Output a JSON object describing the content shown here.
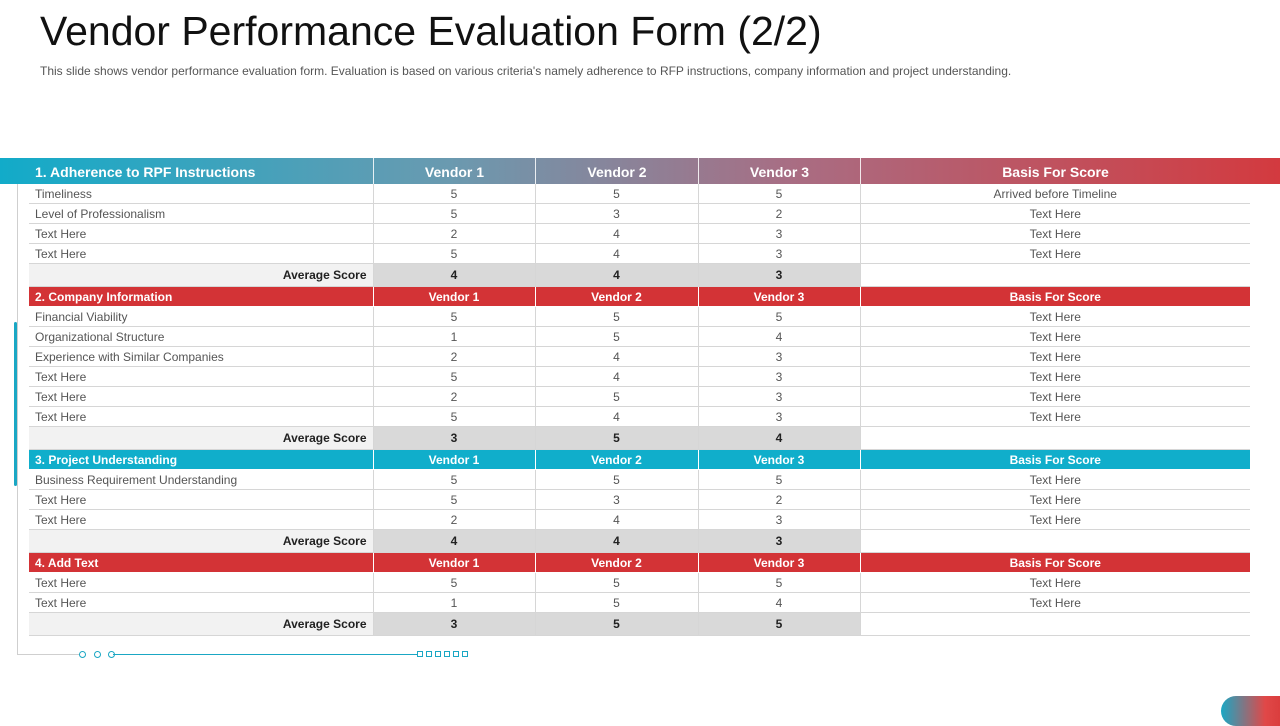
{
  "slide": {
    "title": "Vendor Performance Evaluation Form (2/2)",
    "subtitle": "This slide shows vendor performance  evaluation  form.  Evaluation  is based on various  criteria's namely adherence  to RFP instructions,  company information  and project understanding."
  },
  "banner": {
    "section_title": "1. Adherence to RPF Instructions",
    "vendor1": "Vendor 1",
    "vendor2": "Vendor 2",
    "vendor3": "Vendor 3",
    "basis": "Basis For Score"
  },
  "sections": [
    {
      "header": null,
      "rows": [
        {
          "label": "Timeliness",
          "v1": "5",
          "v2": "5",
          "v3": "5",
          "basis": "Arrived before Timeline"
        },
        {
          "label": "Level of Professionalism",
          "v1": "5",
          "v2": "3",
          "v3": "2",
          "basis": "Text Here"
        },
        {
          "label": "Text Here",
          "v1": "2",
          "v2": "4",
          "v3": "3",
          "basis": "Text Here"
        },
        {
          "label": "Text Here",
          "v1": "5",
          "v2": "4",
          "v3": "3",
          "basis": "Text Here"
        }
      ],
      "average": {
        "label": "Average Score",
        "v1": "4",
        "v2": "4",
        "v3": "3"
      }
    },
    {
      "header": {
        "title": "2. Company Information",
        "vendor1": "Vendor 1",
        "vendor2": "Vendor 2",
        "vendor3": "Vendor 3",
        "basis": "Basis For Score",
        "color": "#d33336"
      },
      "rows": [
        {
          "label": "Financial Viability",
          "v1": "5",
          "v2": "5",
          "v3": "5",
          "basis": "Text Here"
        },
        {
          "label": "Organizational Structure",
          "v1": "1",
          "v2": "5",
          "v3": "4",
          "basis": "Text Here"
        },
        {
          "label": "Experience with Similar Companies",
          "v1": "2",
          "v2": "4",
          "v3": "3",
          "basis": "Text Here"
        },
        {
          "label": "Text Here",
          "v1": "5",
          "v2": "4",
          "v3": "3",
          "basis": "Text Here"
        },
        {
          "label": "Text Here",
          "v1": "2",
          "v2": "5",
          "v3": "3",
          "basis": "Text Here"
        },
        {
          "label": "Text Here",
          "v1": "5",
          "v2": "4",
          "v3": "3",
          "basis": "Text Here"
        }
      ],
      "average": {
        "label": "Average Score",
        "v1": "3",
        "v2": "5",
        "v3": "4"
      }
    },
    {
      "header": {
        "title": "3. Project Understanding",
        "vendor1": "Vendor 1",
        "vendor2": "Vendor 2",
        "vendor3": "Vendor 3",
        "basis": "Basis For Score",
        "color": "#10aecb"
      },
      "rows": [
        {
          "label": "Business Requirement Understanding",
          "v1": "5",
          "v2": "5",
          "v3": "5",
          "basis": "Text Here"
        },
        {
          "label": "Text Here",
          "v1": "5",
          "v2": "3",
          "v3": "2",
          "basis": "Text Here"
        },
        {
          "label": "Text Here",
          "v1": "2",
          "v2": "4",
          "v3": "3",
          "basis": "Text Here"
        }
      ],
      "average": {
        "label": "Average Score",
        "v1": "4",
        "v2": "4",
        "v3": "3"
      }
    },
    {
      "header": {
        "title": "4. Add Text",
        "vendor1": "Vendor 1",
        "vendor2": "Vendor 2",
        "vendor3": "Vendor 3",
        "basis": "Basis For Score",
        "color": "#d33336"
      },
      "rows": [
        {
          "label": "Text Here",
          "v1": "5",
          "v2": "5",
          "v3": "5",
          "basis": "Text Here"
        },
        {
          "label": "Text Here",
          "v1": "1",
          "v2": "5",
          "v3": "4",
          "basis": "Text Here"
        }
      ],
      "average": {
        "label": "Average Score",
        "v1": "3",
        "v2": "5",
        "v3": "5"
      }
    }
  ]
}
